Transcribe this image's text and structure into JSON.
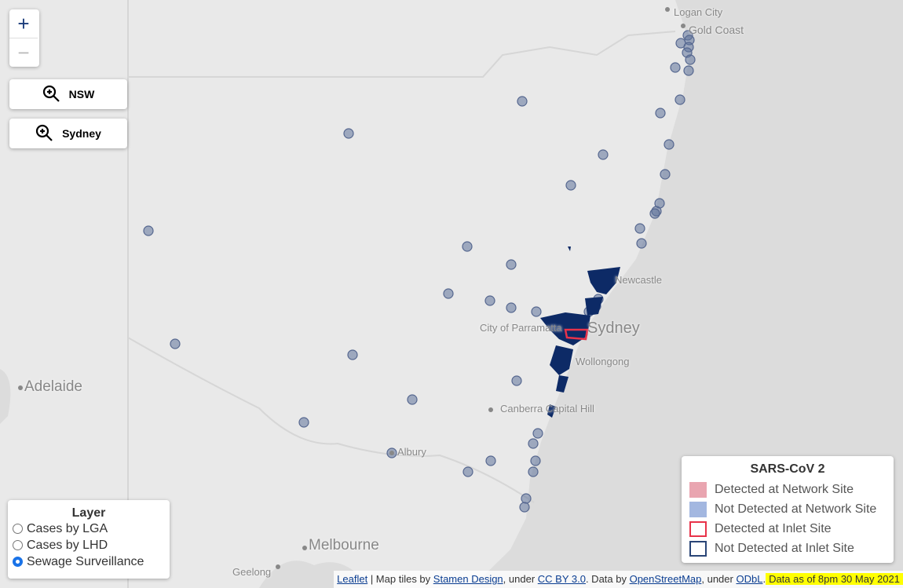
{
  "zoom_controls": {
    "zoom_in": "+",
    "zoom_out": "−"
  },
  "buttons": [
    "NSW",
    "Sydney"
  ],
  "place_labels": [
    "Logan City",
    "Gold Coast",
    "Newcastle",
    "City of Parramatta",
    "Sydney",
    "Wollongong",
    "Canberra Capital Hill",
    "Albury",
    "Adelaide",
    "Melbourne",
    "Geelong"
  ],
  "legend": {
    "title": "SARS-CoV 2",
    "items": [
      "Detected at Network Site",
      "Not Detected at Network Site",
      "Detected at Inlet Site",
      "Not Detected at Inlet Site"
    ]
  },
  "layer_control": {
    "title": "Layer",
    "options": [
      "Cases by LGA",
      "Cases by LHD",
      "Sewage Surveillance"
    ],
    "selected": "Sewage Surveillance"
  },
  "attribution": {
    "parts": [
      "Leaflet",
      " | Map tiles by ",
      "Stamen Design",
      ", under ",
      "CC BY 3.0",
      ". Data by ",
      "OpenStreetMap",
      ", under ",
      "ODbL",
      "."
    ],
    "date_note": "Data as of 8pm 30 May 2021"
  }
}
